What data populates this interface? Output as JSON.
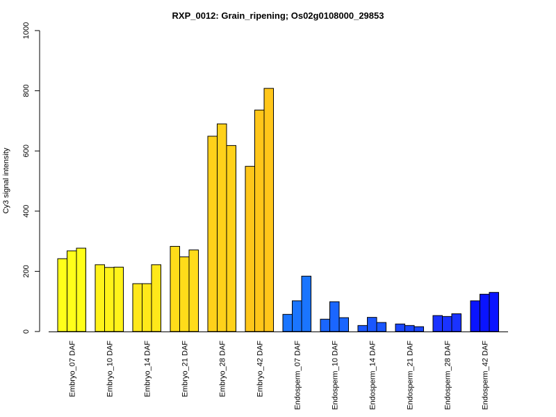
{
  "chart_data": {
    "type": "bar",
    "title": "RXP_0012: Grain_ripening; Os02g0108000_29853",
    "xlabel": "",
    "ylabel": "Cy3 signal intensity",
    "ylim": [
      0,
      1000
    ],
    "yticks": [
      0,
      200,
      400,
      600,
      800,
      1000
    ],
    "replicates_per_group": 3,
    "groups": [
      {
        "label": "Embryo_07 DAF",
        "values": [
          242,
          268,
          277
        ],
        "color": "#ffff1a"
      },
      {
        "label": "Embryo_10 DAF",
        "values": [
          222,
          213,
          214
        ],
        "color": "#fff31a"
      },
      {
        "label": "Embryo_14 DAF",
        "values": [
          159,
          159,
          222
        ],
        "color": "#ffe81a"
      },
      {
        "label": "Embryo_21 DAF",
        "values": [
          283,
          248,
          271
        ],
        "color": "#ffdc1a"
      },
      {
        "label": "Embryo_28 DAF",
        "values": [
          649,
          690,
          618
        ],
        "color": "#ffd11a"
      },
      {
        "label": "Embryo_42 DAF",
        "values": [
          549,
          736,
          808
        ],
        "color": "#ffc61a"
      },
      {
        "label": "Endosperm_07 DAF",
        "values": [
          57,
          102,
          184
        ],
        "color": "#1a75ff"
      },
      {
        "label": "Endosperm_10 DAF",
        "values": [
          41,
          99,
          46
        ],
        "color": "#1a66ff"
      },
      {
        "label": "Endosperm_14 DAF",
        "values": [
          20,
          47,
          30
        ],
        "color": "#1a57ff"
      },
      {
        "label": "Endosperm_21 DAF",
        "values": [
          25,
          20,
          16
        ],
        "color": "#1a47ff"
      },
      {
        "label": "Endosperm_28 DAF",
        "values": [
          53,
          50,
          59
        ],
        "color": "#1a33ff"
      },
      {
        "label": "Endosperm_42 DAF",
        "values": [
          102,
          124,
          130
        ],
        "color": "#0a14ff"
      }
    ],
    "grid": false,
    "legend": "none"
  }
}
